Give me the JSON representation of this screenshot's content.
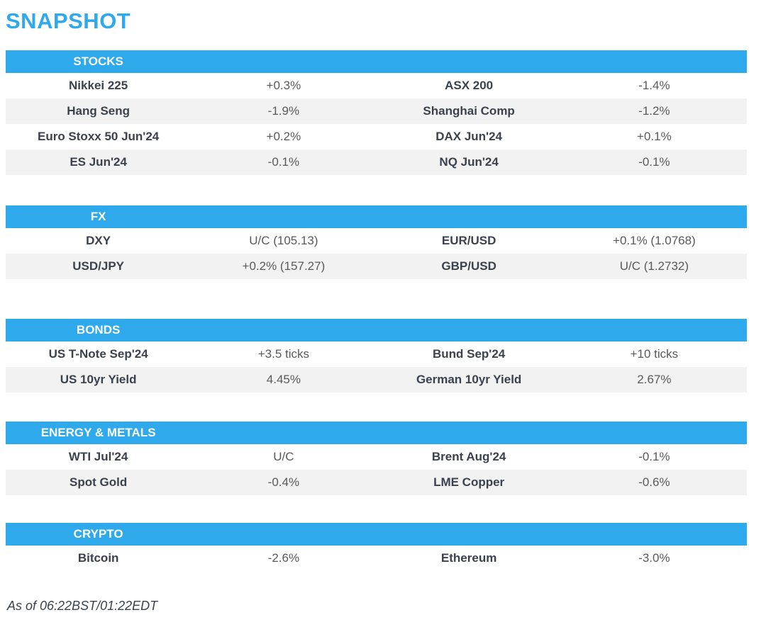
{
  "page": {
    "title": "SNAPSHOT",
    "footer": "As of 06:22BST/01:22EDT"
  },
  "colors": {
    "accent_blue": "#2ea9ec",
    "header_text": "#ffffff",
    "label_text": "#3a424d",
    "value_text": "#58595b",
    "row_alt_bg": "#f2f2f2"
  },
  "sections": [
    {
      "title": "STOCKS",
      "rows": [
        [
          {
            "label": "Nikkei 225",
            "value": "+0.3%"
          },
          {
            "label": "ASX 200",
            "value": "-1.4%"
          }
        ],
        [
          {
            "label": "Hang Seng",
            "value": "-1.9%"
          },
          {
            "label": "Shanghai Comp",
            "value": "-1.2%"
          }
        ],
        [
          {
            "label": "Euro Stoxx 50 Jun'24",
            "value": "+0.2%"
          },
          {
            "label": "DAX Jun'24",
            "value": "+0.1%"
          }
        ],
        [
          {
            "label": "ES Jun'24",
            "value": "-0.1%"
          },
          {
            "label": "NQ Jun'24",
            "value": "-0.1%"
          }
        ]
      ]
    },
    {
      "title": "FX",
      "rows": [
        [
          {
            "label": "DXY",
            "value": "U/C (105.13)"
          },
          {
            "label": "EUR/USD",
            "value": "+0.1% (1.0768)"
          }
        ],
        [
          {
            "label": "USD/JPY",
            "value": "+0.2% (157.27)"
          },
          {
            "label": "GBP/USD",
            "value": "U/C (1.2732)"
          }
        ]
      ]
    },
    {
      "title": "BONDS",
      "rows": [
        [
          {
            "label": "US T-Note Sep'24",
            "value": "+3.5 ticks"
          },
          {
            "label": "Bund Sep'24",
            "value": "+10 ticks"
          }
        ],
        [
          {
            "label": "US 10yr Yield",
            "value": "4.45%"
          },
          {
            "label": "German 10yr Yield",
            "value": "2.67%"
          }
        ]
      ]
    },
    {
      "title": "ENERGY & METALS",
      "rows": [
        [
          {
            "label": "WTI Jul'24",
            "value": "U/C"
          },
          {
            "label": "Brent Aug'24",
            "value": "-0.1%"
          }
        ],
        [
          {
            "label": "Spot Gold",
            "value": "-0.4%"
          },
          {
            "label": "LME Copper",
            "value": "-0.6%"
          }
        ]
      ]
    },
    {
      "title": "CRYPTO",
      "rows": [
        [
          {
            "label": "Bitcoin",
            "value": "-2.6%"
          },
          {
            "label": "Ethereum",
            "value": "-3.0%"
          }
        ]
      ]
    }
  ]
}
